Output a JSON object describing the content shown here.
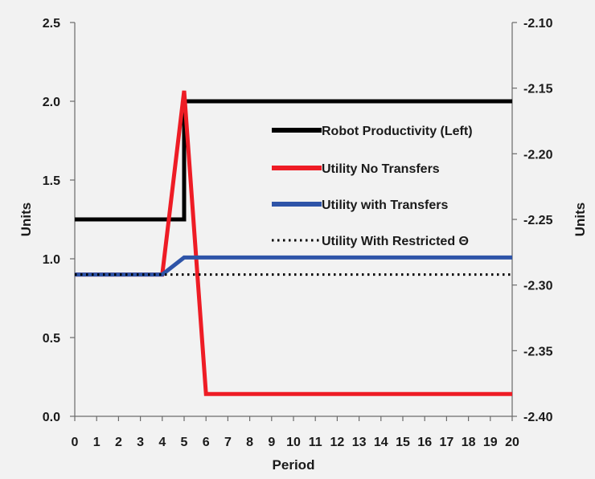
{
  "chart_data": {
    "type": "line",
    "title": "",
    "xlabel": "Period",
    "ylabel_left": "Units",
    "ylabel_right": "Units",
    "x": [
      0,
      1,
      2,
      3,
      4,
      5,
      6,
      7,
      8,
      9,
      10,
      11,
      12,
      13,
      14,
      15,
      16,
      17,
      18,
      19,
      20
    ],
    "xlim": [
      0,
      20
    ],
    "ylim_left": [
      0.0,
      2.5
    ],
    "yticks_left": [
      "0.0",
      "0.5",
      "1.0",
      "1.5",
      "2.0",
      "2.5"
    ],
    "ylim_right": [
      -2.4,
      -2.1
    ],
    "yticks_right": [
      "-2.40",
      "-2.35",
      "-2.30",
      "-2.25",
      "-2.20",
      "-2.15",
      "-2.10"
    ],
    "grid": false,
    "legend_position": "right",
    "series": [
      {
        "name": "Robot Productivity (Left)",
        "axis": "left",
        "color": "#000000",
        "style": "solid",
        "points": [
          [
            0,
            1.25
          ],
          [
            5,
            1.25
          ],
          [
            5,
            2.0
          ],
          [
            20,
            2.0
          ]
        ]
      },
      {
        "name": "Utility No Transfers",
        "axis": "right",
        "color": "#ee1c25",
        "style": "solid",
        "points": [
          [
            0,
            -2.292
          ],
          [
            1,
            -2.292
          ],
          [
            2,
            -2.292
          ],
          [
            3,
            -2.292
          ],
          [
            4,
            -2.292
          ],
          [
            5,
            -2.152
          ],
          [
            6,
            -2.383
          ],
          [
            7,
            -2.383
          ],
          [
            8,
            -2.383
          ],
          [
            9,
            -2.383
          ],
          [
            10,
            -2.383
          ],
          [
            11,
            -2.383
          ],
          [
            12,
            -2.383
          ],
          [
            13,
            -2.383
          ],
          [
            14,
            -2.383
          ],
          [
            15,
            -2.383
          ],
          [
            16,
            -2.383
          ],
          [
            17,
            -2.383
          ],
          [
            18,
            -2.383
          ],
          [
            19,
            -2.383
          ],
          [
            20,
            -2.383
          ]
        ]
      },
      {
        "name": "Utility with Transfers",
        "axis": "right",
        "color": "#2e54a8",
        "style": "solid",
        "points": [
          [
            0,
            -2.292
          ],
          [
            1,
            -2.292
          ],
          [
            2,
            -2.292
          ],
          [
            3,
            -2.292
          ],
          [
            4,
            -2.292
          ],
          [
            5,
            -2.279
          ],
          [
            6,
            -2.279
          ],
          [
            7,
            -2.279
          ],
          [
            8,
            -2.279
          ],
          [
            9,
            -2.279
          ],
          [
            10,
            -2.279
          ],
          [
            11,
            -2.279
          ],
          [
            12,
            -2.279
          ],
          [
            13,
            -2.279
          ],
          [
            14,
            -2.279
          ],
          [
            15,
            -2.279
          ],
          [
            16,
            -2.279
          ],
          [
            17,
            -2.279
          ],
          [
            18,
            -2.279
          ],
          [
            19,
            -2.279
          ],
          [
            20,
            -2.279
          ]
        ]
      },
      {
        "name": "Utility With Restricted Θ",
        "axis": "right",
        "color": "#000000",
        "style": "dotted",
        "points": [
          [
            0,
            -2.292
          ],
          [
            20,
            -2.292
          ]
        ]
      }
    ]
  }
}
